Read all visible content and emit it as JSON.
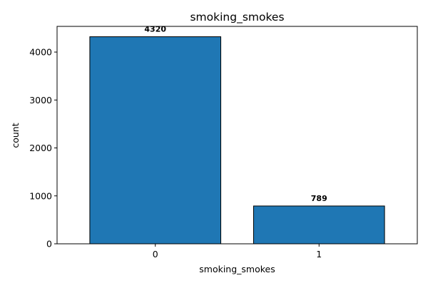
{
  "chart_data": {
    "type": "bar",
    "title": "smoking_smokes",
    "xlabel": "smoking_smokes",
    "ylabel": "count",
    "categories": [
      "0",
      "1"
    ],
    "values": [
      4320,
      789
    ],
    "data_labels": [
      "4320",
      "789"
    ],
    "ylim": [
      0,
      4536
    ],
    "yticks": [
      0,
      1000,
      2000,
      3000,
      4000
    ],
    "ytick_labels": [
      "0",
      "1000",
      "2000",
      "3000",
      "4000"
    ],
    "grid": false,
    "bar_color": "#1f77b4",
    "bar_edge_color": "#000000"
  }
}
